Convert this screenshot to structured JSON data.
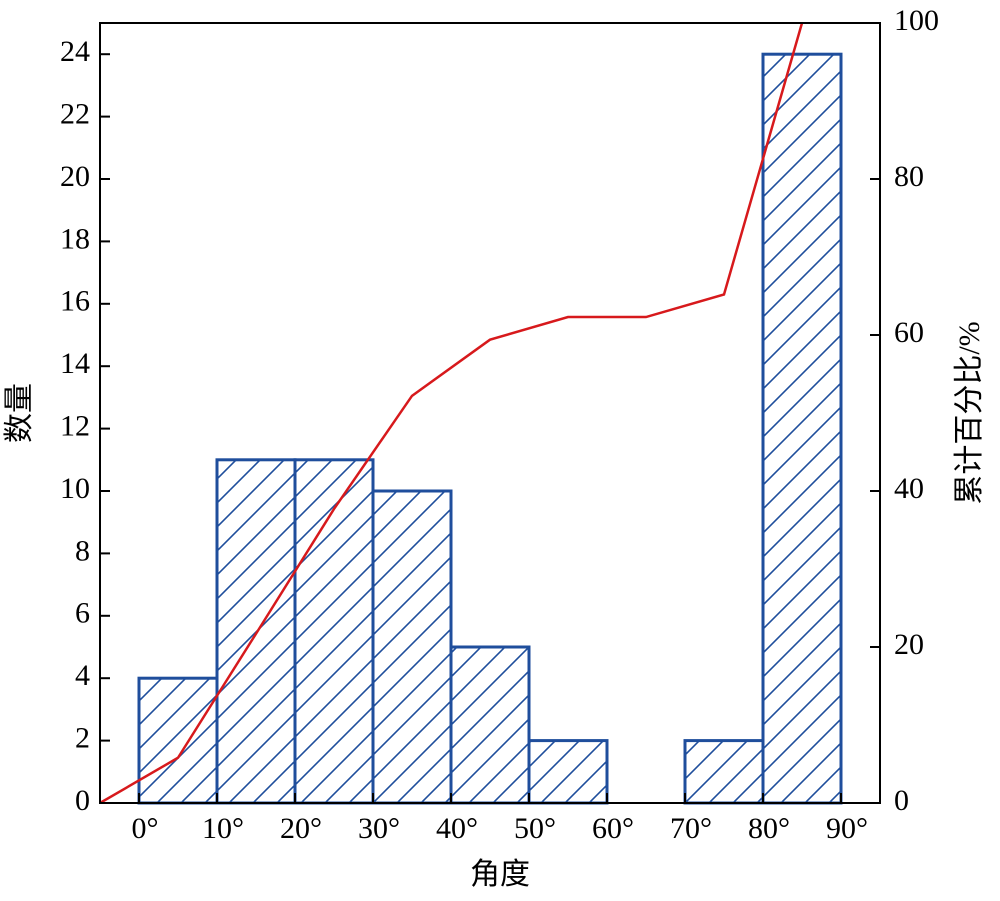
{
  "chart_data": {
    "type": "histogram",
    "bins": [
      0,
      10,
      20,
      30,
      40,
      50,
      60,
      70,
      80,
      90
    ],
    "counts": [
      4,
      11,
      11,
      10,
      5,
      2,
      0,
      2,
      24
    ],
    "color": "#1f4e9c",
    "xlim": [
      -5,
      95
    ],
    "xticks": [
      {
        "value": 0,
        "label": "0°"
      },
      {
        "value": 10,
        "label": "10°"
      },
      {
        "value": 20,
        "label": "20°"
      },
      {
        "value": 30,
        "label": "30°"
      },
      {
        "value": 40,
        "label": "40°"
      },
      {
        "value": 50,
        "label": "50°"
      },
      {
        "value": 60,
        "label": "60°"
      },
      {
        "value": 70,
        "label": "70°"
      },
      {
        "value": 80,
        "label": "80°"
      },
      {
        "value": 90,
        "label": "90°"
      }
    ],
    "ylim": [
      0,
      25
    ],
    "yticks": [
      0,
      2,
      4,
      6,
      8,
      10,
      12,
      14,
      16,
      18,
      20,
      22,
      24
    ],
    "y2lim": [
      0,
      100
    ],
    "y2ticks": [
      0,
      20,
      40,
      60,
      80,
      100
    ],
    "x_label": "角度",
    "y_label": "数量",
    "y2_label": "累计百分比/%",
    "line": {
      "x": [
        -5,
        5,
        15,
        25,
        35,
        45,
        55,
        65,
        75,
        85
      ],
      "values": [
        0,
        5.8,
        21.7,
        37.7,
        52.2,
        59.4,
        62.3,
        62.3,
        65.2,
        100
      ],
      "color": "#d7191c",
      "axis": "y2"
    }
  }
}
